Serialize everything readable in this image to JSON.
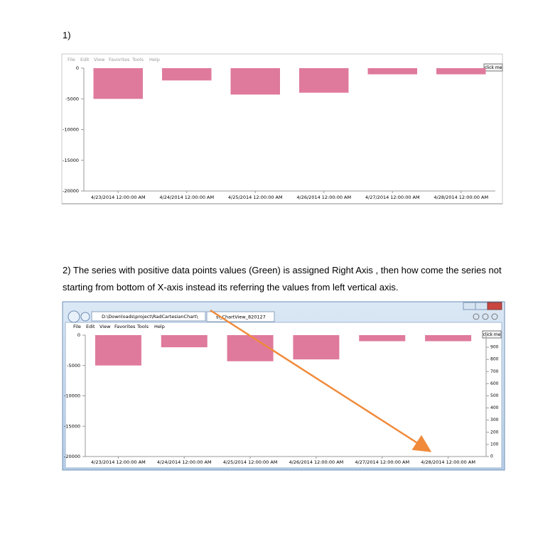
{
  "document": {
    "heading1": "1)",
    "paragraph2": "2) The series with positive data points values (Green) is assigned Right Axis , then how come the series not starting from bottom of X-axis instead its referring the values from left vertical axis.",
    "menu": [
      "File",
      "Edit",
      "View",
      "Favorites",
      "Tools",
      "Help"
    ],
    "button": "click me",
    "address": "D:\\Downloads\\project\\RadCartesianChart\\",
    "tab": "sl_ChartView_820127"
  },
  "chart_data": [
    {
      "type": "bar",
      "categories": [
        "4/23/2014 12:00:00 AM",
        "4/24/2014 12:00:00 AM",
        "4/25/2014 12:00:00 AM",
        "4/26/2014 12:00:00 AM",
        "4/27/2014 12:00:00 AM",
        "4/28/2014 12:00:00 AM"
      ],
      "values": [
        -5000,
        -2000,
        -4300,
        -4000,
        -1000,
        -1000
      ],
      "color": "#df7a9c",
      "ylim": [
        -20000,
        0
      ],
      "yticks": [
        0,
        -5000,
        -10000,
        -15000,
        -20000
      ]
    },
    {
      "type": "bar",
      "categories": [
        "4/23/2014 12:00:00 AM",
        "4/24/2014 12:00:00 AM",
        "4/25/2014 12:00:00 AM",
        "4/26/2014 12:00:00 AM",
        "4/27/2014 12:00:00 AM",
        "4/28/2014 12:00:00 AM"
      ],
      "values": [
        -5000,
        -2000,
        -4300,
        -4000,
        -1000,
        -1000
      ],
      "color": "#df7a9c",
      "ylim": [
        -20000,
        0
      ],
      "yticks": [
        0,
        -5000,
        -10000,
        -15000,
        -20000
      ],
      "y2lim": [
        0,
        1000
      ],
      "y2ticks": [
        0,
        100,
        200,
        300,
        400,
        500,
        600,
        700,
        800,
        900
      ]
    }
  ]
}
